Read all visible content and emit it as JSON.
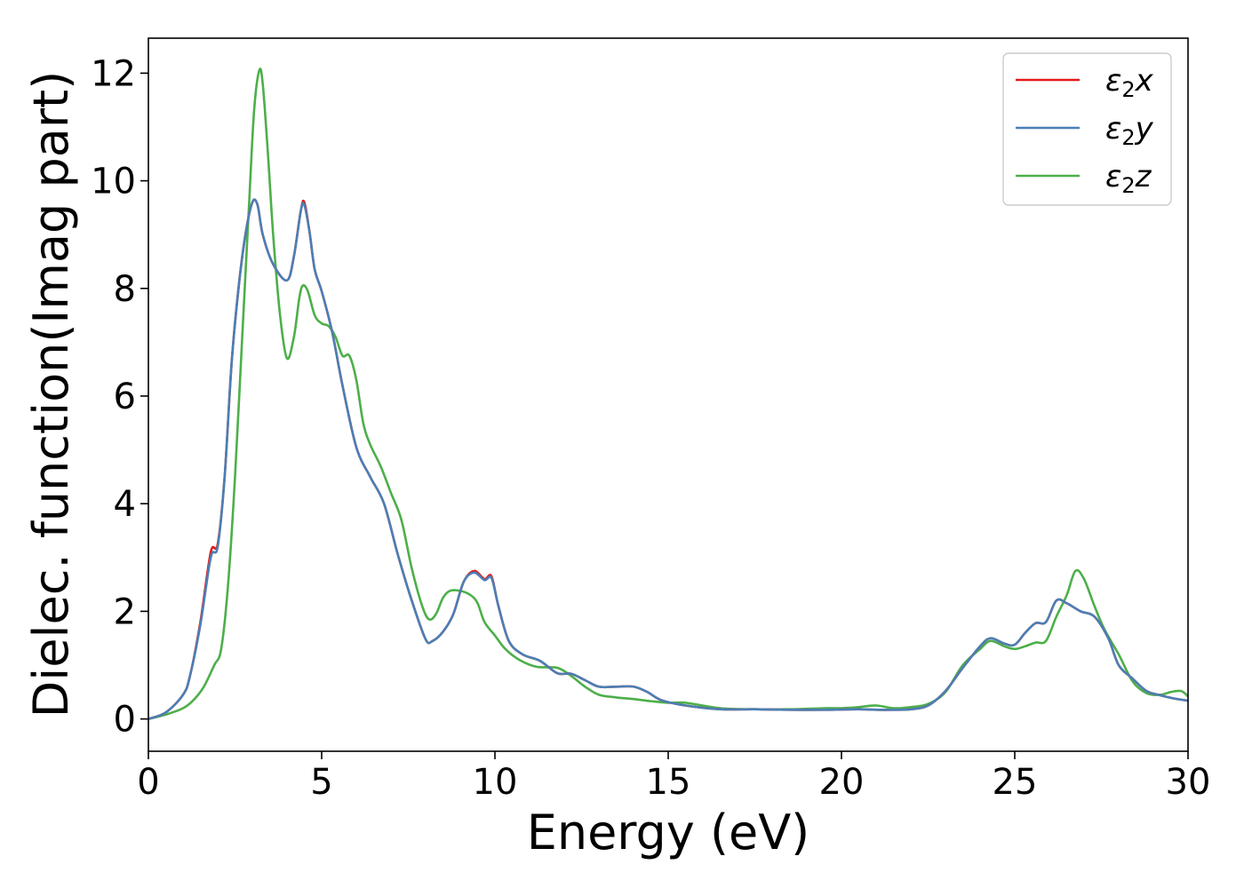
{
  "chart_data": {
    "type": "line",
    "title": "",
    "xlabel": "Energy (eV)",
    "ylabel": "Dielec. function(Imag part)",
    "xlim": [
      0,
      30
    ],
    "ylim": [
      -0.6,
      12.65
    ],
    "xticks": [
      0,
      5,
      10,
      15,
      20,
      25,
      30
    ],
    "yticks": [
      0,
      2,
      4,
      6,
      8,
      10,
      12
    ],
    "grid": false,
    "legend_position": "top-right",
    "series": [
      {
        "name": "ε₂x",
        "legend_base": "ε",
        "legend_sub": "2",
        "legend_var": "x",
        "color": "#e41a1c",
        "x": [
          0,
          0.5,
          1.0,
          1.2,
          1.5,
          1.8,
          2.0,
          2.2,
          2.4,
          2.6,
          2.8,
          3.0,
          3.15,
          3.3,
          3.6,
          4.0,
          4.2,
          4.4,
          4.5,
          4.65,
          4.8,
          5.0,
          5.3,
          5.6,
          6.0,
          6.4,
          6.8,
          7.2,
          7.6,
          8.0,
          8.2,
          8.5,
          8.8,
          9.1,
          9.4,
          9.7,
          9.9,
          10.1,
          10.4,
          10.8,
          11.3,
          11.8,
          12.2,
          12.6,
          13.0,
          13.5,
          14.0,
          14.4,
          14.8,
          15.5,
          16.5,
          17.5,
          18.5,
          19.5,
          20.5,
          21.0,
          21.5,
          22.0,
          22.5,
          23.0,
          23.5,
          24.0,
          24.3,
          24.7,
          25.0,
          25.3,
          25.6,
          25.9,
          26.2,
          26.5,
          26.9,
          27.3,
          27.7,
          28.0,
          28.4,
          28.8,
          29.2,
          29.6,
          30.0
        ],
        "y": [
          0.0,
          0.12,
          0.45,
          0.8,
          1.8,
          3.1,
          3.25,
          4.5,
          6.6,
          8.0,
          9.0,
          9.6,
          9.55,
          9.0,
          8.45,
          8.15,
          8.6,
          9.45,
          9.6,
          9.05,
          8.35,
          7.95,
          7.2,
          6.2,
          5.05,
          4.5,
          4.0,
          3.05,
          2.2,
          1.48,
          1.45,
          1.62,
          1.95,
          2.55,
          2.75,
          2.6,
          2.65,
          2.1,
          1.45,
          1.2,
          1.08,
          0.85,
          0.84,
          0.72,
          0.6,
          0.6,
          0.6,
          0.5,
          0.35,
          0.25,
          0.18,
          0.18,
          0.17,
          0.17,
          0.18,
          0.17,
          0.17,
          0.18,
          0.25,
          0.52,
          0.95,
          1.35,
          1.5,
          1.4,
          1.38,
          1.6,
          1.78,
          1.8,
          2.2,
          2.15,
          2.0,
          1.9,
          1.5,
          1.0,
          0.75,
          0.52,
          0.44,
          0.38,
          0.34
        ]
      },
      {
        "name": "ε₂y",
        "legend_base": "ε",
        "legend_sub": "2",
        "legend_var": "y",
        "color": "#4a7fb5",
        "x": [
          0,
          0.5,
          1.0,
          1.2,
          1.5,
          1.8,
          2.0,
          2.2,
          2.4,
          2.6,
          2.8,
          3.0,
          3.15,
          3.3,
          3.6,
          4.0,
          4.2,
          4.4,
          4.5,
          4.65,
          4.8,
          5.0,
          5.3,
          5.6,
          6.0,
          6.4,
          6.8,
          7.2,
          7.6,
          8.0,
          8.2,
          8.5,
          8.8,
          9.1,
          9.4,
          9.7,
          9.9,
          10.1,
          10.4,
          10.8,
          11.3,
          11.8,
          12.2,
          12.6,
          13.0,
          13.5,
          14.0,
          14.4,
          14.8,
          15.5,
          16.5,
          17.5,
          18.5,
          19.5,
          20.5,
          21.0,
          21.5,
          22.0,
          22.5,
          23.0,
          23.5,
          24.0,
          24.3,
          24.7,
          25.0,
          25.3,
          25.6,
          25.9,
          26.2,
          26.5,
          26.9,
          27.3,
          27.7,
          28.0,
          28.4,
          28.8,
          29.2,
          29.6,
          30.0
        ],
        "y": [
          0.0,
          0.12,
          0.45,
          0.8,
          1.75,
          3.0,
          3.2,
          4.5,
          6.6,
          8.0,
          9.0,
          9.6,
          9.55,
          9.0,
          8.45,
          8.15,
          8.6,
          9.45,
          9.55,
          9.05,
          8.35,
          7.95,
          7.2,
          6.2,
          5.05,
          4.5,
          4.0,
          3.05,
          2.2,
          1.48,
          1.45,
          1.62,
          1.95,
          2.55,
          2.72,
          2.58,
          2.62,
          2.1,
          1.45,
          1.2,
          1.08,
          0.85,
          0.84,
          0.72,
          0.6,
          0.6,
          0.6,
          0.5,
          0.35,
          0.25,
          0.18,
          0.18,
          0.17,
          0.17,
          0.18,
          0.17,
          0.17,
          0.18,
          0.25,
          0.52,
          0.95,
          1.35,
          1.5,
          1.4,
          1.38,
          1.6,
          1.78,
          1.8,
          2.2,
          2.15,
          2.0,
          1.9,
          1.5,
          1.0,
          0.75,
          0.52,
          0.44,
          0.38,
          0.34
        ]
      },
      {
        "name": "ε₂z",
        "legend_base": "ε",
        "legend_sub": "2",
        "legend_var": "z",
        "color": "#4daf4a",
        "x": [
          0,
          0.5,
          1.0,
          1.3,
          1.6,
          1.9,
          2.1,
          2.3,
          2.5,
          2.7,
          2.9,
          3.05,
          3.2,
          3.3,
          3.45,
          3.6,
          3.8,
          4.0,
          4.2,
          4.35,
          4.45,
          4.6,
          4.8,
          5.0,
          5.2,
          5.4,
          5.6,
          5.8,
          6.0,
          6.2,
          6.4,
          6.7,
          7.0,
          7.3,
          7.6,
          7.9,
          8.1,
          8.3,
          8.5,
          8.7,
          9.0,
          9.3,
          9.5,
          9.7,
          10.0,
          10.3,
          10.7,
          11.2,
          11.8,
          12.2,
          12.6,
          13.0,
          13.5,
          14.0,
          14.5,
          15.0,
          15.5,
          16.5,
          17.5,
          18.5,
          19.5,
          20.0,
          20.5,
          21.0,
          21.5,
          22.0,
          22.5,
          23.0,
          23.5,
          24.0,
          24.3,
          24.7,
          25.0,
          25.3,
          25.6,
          25.9,
          26.2,
          26.5,
          26.75,
          27.0,
          27.3,
          27.6,
          28.0,
          28.4,
          28.8,
          29.2,
          29.5,
          29.8,
          30.0
        ],
        "y": [
          0.0,
          0.08,
          0.2,
          0.35,
          0.6,
          1.0,
          1.3,
          2.5,
          4.5,
          7.0,
          9.5,
          11.3,
          12.05,
          11.8,
          10.5,
          9.0,
          7.5,
          6.7,
          7.1,
          7.8,
          8.05,
          7.95,
          7.5,
          7.35,
          7.3,
          7.1,
          6.75,
          6.75,
          6.3,
          5.5,
          5.1,
          4.7,
          4.2,
          3.7,
          2.8,
          2.1,
          1.85,
          1.95,
          2.25,
          2.38,
          2.38,
          2.3,
          2.15,
          1.8,
          1.55,
          1.3,
          1.1,
          0.97,
          0.95,
          0.8,
          0.6,
          0.45,
          0.4,
          0.37,
          0.33,
          0.3,
          0.3,
          0.2,
          0.18,
          0.18,
          0.2,
          0.2,
          0.22,
          0.25,
          0.2,
          0.22,
          0.28,
          0.5,
          1.0,
          1.3,
          1.45,
          1.35,
          1.3,
          1.35,
          1.42,
          1.45,
          1.9,
          2.3,
          2.75,
          2.6,
          2.1,
          1.65,
          1.2,
          0.7,
          0.48,
          0.45,
          0.5,
          0.52,
          0.42
        ]
      }
    ]
  }
}
